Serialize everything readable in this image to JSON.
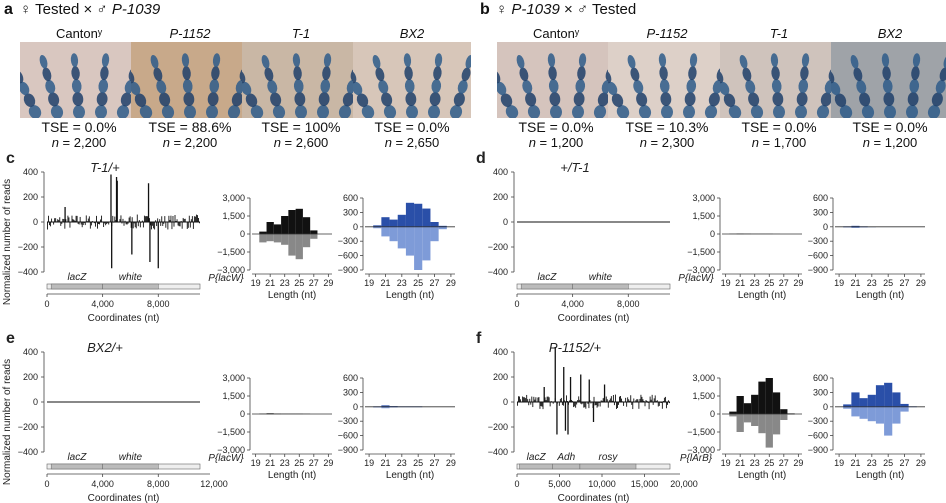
{
  "panels_top": [
    {
      "letter": "a",
      "cross_left": "♀ Tested × ♂ ",
      "cross_strain": "P-1039",
      "photos": [
        {
          "label": "Cantonʸ",
          "italic": false,
          "tse": "TSE = 0.0%",
          "n_prefix": "n",
          "n_value": " = 2,200",
          "tone": "#d9c7c0"
        },
        {
          "label": "P-1152",
          "italic": true,
          "tse": "TSE = 88.6%",
          "n_prefix": "n",
          "n_value": " = 2,200",
          "tone": "#c8a98a"
        },
        {
          "label": "T-1",
          "italic": true,
          "tse": "TSE = 100%",
          "n_prefix": "n",
          "n_value": " = 2,600",
          "tone": "#c9b7a5"
        },
        {
          "label": "BX2",
          "italic": true,
          "tse": "TSE = 0.0%",
          "n_prefix": "n",
          "n_value": " = 2,650",
          "tone": "#d7c6b9"
        }
      ]
    },
    {
      "letter": "b",
      "cross_left": "♀ ",
      "cross_strain": "P-1039",
      "cross_right": " × ♂ Tested",
      "photos": [
        {
          "label": "Cantonʸ",
          "italic": false,
          "tse": "TSE = 0.0%",
          "n_prefix": "n",
          "n_value": " = 1,200",
          "tone": "#d5c4bd"
        },
        {
          "label": "P-1152",
          "italic": true,
          "tse": "TSE = 10.3%",
          "n_prefix": "n",
          "n_value": " = 2,300",
          "tone": "#ddd0c8"
        },
        {
          "label": "T-1",
          "italic": true,
          "tse": "TSE = 0.0%",
          "n_prefix": "n",
          "n_value": " = 1,700",
          "tone": "#cfc3bc"
        },
        {
          "label": "BX2",
          "italic": true,
          "tse": "TSE = 0.0%",
          "n_prefix": "n",
          "n_value": " = 1,200",
          "tone": "#9fa3a8"
        }
      ]
    }
  ],
  "common": {
    "ylabel": "Normalized number of reads",
    "coord_label": "Coordinates (nt)",
    "length_label": "Length (nt)",
    "colors": {
      "sense": "#111111",
      "antisense_gray": "#888888",
      "blue_dark": "#2a4fa8",
      "blue_light": "#7e9bd8"
    }
  },
  "chart_data": [
    {
      "panel": "c",
      "title": "T-1/+",
      "type": "bar",
      "xlabel": "Coordinates (nt)",
      "ylabel": "Normalized number of reads",
      "xlim": [
        0,
        11000
      ],
      "ylim": [
        -400,
        400
      ],
      "yticks": [
        "400",
        "200",
        "0",
        "−200",
        "−400"
      ],
      "xticks": [
        {
          "v": 0,
          "t": "0"
        },
        {
          "v": 4000,
          "t": "4,000"
        },
        {
          "v": 8000,
          "t": "8,000"
        }
      ],
      "x_max_label": "",
      "construct": "P{lacW}",
      "genes": [
        {
          "name": "lacZ",
          "start": 300,
          "end": 4000
        },
        {
          "name": "white",
          "start": 4000,
          "end": 8000
        }
      ],
      "profile": "high",
      "spikes": [
        [
          4600,
          380
        ],
        [
          4650,
          -370
        ],
        [
          5000,
          360
        ],
        [
          5050,
          330
        ],
        [
          7300,
          310
        ],
        [
          7400,
          -320
        ],
        [
          8000,
          -370
        ],
        [
          1300,
          120
        ],
        [
          6100,
          -260
        ]
      ],
      "hist_gray": {
        "ylim": [
          -3000,
          3000
        ],
        "yticks": [
          "3,000",
          "1,500",
          "0",
          "−1,500",
          "−3,000"
        ],
        "lengths": [
          19,
          20,
          21,
          22,
          23,
          24,
          25,
          26,
          27,
          28,
          29
        ],
        "sense": [
          0,
          200,
          1000,
          800,
          1500,
          2000,
          2100,
          1400,
          300,
          0,
          0
        ],
        "antisense": [
          0,
          -700,
          -600,
          -700,
          -900,
          -1800,
          -2100,
          -1100,
          -400,
          0,
          0
        ]
      },
      "hist_blue": {
        "ylim": [
          -900,
          600
        ],
        "yticks": [
          "600",
          "300",
          "0",
          "−300",
          "−600",
          "−900"
        ],
        "lengths": [
          19,
          20,
          21,
          22,
          23,
          24,
          25,
          26,
          27,
          28,
          29
        ],
        "sense": [
          0,
          30,
          200,
          150,
          250,
          500,
          480,
          380,
          100,
          20,
          0
        ],
        "antisense": [
          0,
          -30,
          -200,
          -300,
          -450,
          -600,
          -900,
          -700,
          -300,
          -50,
          0
        ]
      },
      "length_ticks": [
        "19",
        "21",
        "23",
        "25",
        "27",
        "29"
      ]
    },
    {
      "panel": "d",
      "title": "+/T-1",
      "type": "bar",
      "xlabel": "Coordinates (nt)",
      "ylabel": "",
      "xlim": [
        0,
        11000
      ],
      "ylim": [
        -400,
        400
      ],
      "yticks": [
        "400",
        "200",
        "0",
        "−200",
        "−400"
      ],
      "xticks": [
        {
          "v": 0,
          "t": "0"
        },
        {
          "v": 4000,
          "t": "4,000"
        },
        {
          "v": 8000,
          "t": "8,000"
        }
      ],
      "x_max_label": "",
      "construct": "P{lacW}",
      "genes": [
        {
          "name": "lacZ",
          "start": 300,
          "end": 4000
        },
        {
          "name": "white",
          "start": 4000,
          "end": 8000
        }
      ],
      "profile": "flat",
      "spikes": [],
      "hist_gray": {
        "ylim": [
          -3000,
          3000
        ],
        "yticks": [
          "3,000",
          "1,500",
          "0",
          "−1,500",
          "−3,000"
        ],
        "lengths": [
          19,
          20,
          21,
          22,
          23,
          24,
          25,
          26,
          27,
          28,
          29
        ],
        "sense": [
          0,
          20,
          40,
          30,
          20,
          20,
          20,
          10,
          0,
          0,
          0
        ],
        "antisense": [
          0,
          -10,
          -30,
          -20,
          -10,
          -10,
          -10,
          0,
          0,
          0,
          0
        ]
      },
      "hist_blue": {
        "ylim": [
          -900,
          600
        ],
        "yticks": [
          "600",
          "300",
          "0",
          "−300",
          "−600",
          "−900"
        ],
        "lengths": [
          19,
          20,
          21,
          22,
          23,
          24,
          25,
          26,
          27,
          28,
          29
        ],
        "sense": [
          0,
          10,
          20,
          10,
          5,
          5,
          5,
          5,
          0,
          0,
          0
        ],
        "antisense": [
          0,
          -15,
          -25,
          -15,
          -10,
          -5,
          -5,
          -5,
          0,
          0,
          0
        ]
      },
      "length_ticks": [
        "19",
        "21",
        "23",
        "25",
        "27",
        "29"
      ]
    },
    {
      "panel": "e",
      "title": "BX2/+",
      "type": "bar",
      "xlabel": "Coordinates (nt)",
      "ylabel": "Normalized number of reads",
      "xlim": [
        0,
        11000
      ],
      "ylim": [
        -400,
        400
      ],
      "yticks": [
        "400",
        "200",
        "0",
        "−200",
        "−400"
      ],
      "xticks": [
        {
          "v": 0,
          "t": "0"
        },
        {
          "v": 4000,
          "t": "4,000"
        },
        {
          "v": 8000,
          "t": "8,000"
        }
      ],
      "x_max_label": "12,000",
      "construct": "P{lacW}",
      "genes": [
        {
          "name": "lacZ",
          "start": 300,
          "end": 4000
        },
        {
          "name": "white",
          "start": 4000,
          "end": 8000
        }
      ],
      "profile": "flat",
      "spikes": [],
      "hist_gray": {
        "ylim": [
          -3000,
          3000
        ],
        "yticks": [
          "3,000",
          "1,500",
          "0",
          "−1,500",
          "−3,000"
        ],
        "lengths": [
          19,
          20,
          21,
          22,
          23,
          24,
          25,
          26,
          27,
          28,
          29
        ],
        "sense": [
          0,
          30,
          60,
          40,
          30,
          30,
          30,
          20,
          0,
          0,
          0
        ],
        "antisense": [
          0,
          -20,
          -40,
          -30,
          -20,
          -20,
          -20,
          -10,
          0,
          0,
          0
        ]
      },
      "hist_blue": {
        "ylim": [
          -900,
          600
        ],
        "yticks": [
          "600",
          "300",
          "0",
          "−300",
          "−600",
          "−900"
        ],
        "lengths": [
          19,
          20,
          21,
          22,
          23,
          24,
          25,
          26,
          27,
          28,
          29
        ],
        "sense": [
          0,
          10,
          30,
          15,
          10,
          10,
          10,
          5,
          0,
          0,
          0
        ],
        "antisense": [
          0,
          -15,
          -30,
          -15,
          -10,
          -10,
          -10,
          -5,
          0,
          0,
          0
        ]
      },
      "length_ticks": [
        "19",
        "21",
        "23",
        "25",
        "27",
        "29"
      ]
    },
    {
      "panel": "f",
      "title": "P-1152/+",
      "type": "bar",
      "xlabel": "Coordinates (nt)",
      "ylabel": "",
      "xlim": [
        0,
        18000
      ],
      "ylim": [
        -400,
        400
      ],
      "yticks": [
        "400",
        "200",
        "0",
        "−200",
        "−400"
      ],
      "xticks": [
        {
          "v": 0,
          "t": "0"
        },
        {
          "v": 5000,
          "t": "5,000"
        },
        {
          "v": 10000,
          "t": "10,000"
        },
        {
          "v": 15000,
          "t": "15,000"
        }
      ],
      "x_max_label": "20,000",
      "construct": "P{lArB}",
      "genes": [
        {
          "name": "lacZ",
          "start": 300,
          "end": 4200
        },
        {
          "name": "Adh",
          "start": 4200,
          "end": 7400
        },
        {
          "name": "rosy",
          "start": 7400,
          "end": 14000
        }
      ],
      "profile": "high",
      "spikes": [
        [
          4500,
          440
        ],
        [
          4700,
          -260
        ],
        [
          5500,
          280
        ],
        [
          5700,
          -230
        ],
        [
          6000,
          -260
        ],
        [
          6300,
          200
        ],
        [
          7500,
          220
        ],
        [
          8500,
          180
        ],
        [
          9000,
          -160
        ],
        [
          10300,
          140
        ],
        [
          3200,
          120
        ]
      ],
      "hist_gray": {
        "ylim": [
          -3000,
          3000
        ],
        "yticks": [
          "3,000",
          "1,500",
          "0",
          "−1,500",
          "−3,000"
        ],
        "lengths": [
          19,
          20,
          21,
          22,
          23,
          24,
          25,
          26,
          27,
          28,
          29
        ],
        "sense": [
          0,
          200,
          1500,
          900,
          1600,
          2700,
          3000,
          1800,
          400,
          50,
          0
        ],
        "antisense": [
          0,
          -200,
          -1500,
          -700,
          -1000,
          -1600,
          -2800,
          -1700,
          -500,
          -50,
          0
        ]
      },
      "hist_blue": {
        "ylim": [
          -900,
          600
        ],
        "yticks": [
          "600",
          "300",
          "0",
          "−300",
          "−600",
          "−900"
        ],
        "lengths": [
          19,
          20,
          21,
          22,
          23,
          24,
          25,
          26,
          27,
          28,
          29
        ],
        "sense": [
          0,
          50,
          300,
          180,
          250,
          450,
          500,
          300,
          60,
          10,
          0
        ],
        "antisense": [
          0,
          -40,
          -200,
          -250,
          -300,
          -350,
          -600,
          -350,
          -100,
          -10,
          0
        ]
      },
      "length_ticks": [
        "19",
        "21",
        "23",
        "25",
        "27",
        "29"
      ]
    }
  ]
}
